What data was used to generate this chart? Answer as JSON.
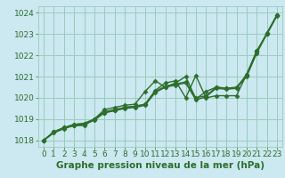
{
  "xlabel": "Graphe pression niveau de la mer (hPa)",
  "background_color": "#cce8f0",
  "plot_bg_color": "#cce8f0",
  "grid_color": "#99ccbb",
  "line_color": "#2d6e2d",
  "text_color": "#2d6e2d",
  "ylim": [
    1017.7,
    1024.3
  ],
  "xlim": [
    -0.5,
    23.5
  ],
  "yticks": [
    1018,
    1019,
    1020,
    1021,
    1022,
    1023,
    1024
  ],
  "xticks": [
    0,
    1,
    2,
    3,
    4,
    5,
    6,
    7,
    8,
    9,
    10,
    11,
    12,
    13,
    14,
    15,
    16,
    17,
    18,
    19,
    20,
    21,
    22,
    23
  ],
  "series": [
    [
      1018.0,
      1018.4,
      1018.6,
      1018.7,
      1018.7,
      1019.0,
      1019.3,
      1019.4,
      1019.55,
      1019.6,
      1019.7,
      1020.35,
      1020.7,
      1020.8,
      1020.0,
      1021.05,
      1020.0,
      1020.1,
      1020.1,
      1020.1,
      1021.1,
      1022.2,
      1023.0,
      1023.9
    ],
    [
      1018.0,
      1018.4,
      1018.6,
      1018.75,
      1018.8,
      1019.0,
      1019.45,
      1019.55,
      1019.65,
      1019.7,
      1020.3,
      1020.8,
      1020.5,
      1020.7,
      1021.0,
      1019.95,
      1020.3,
      1020.5,
      1020.45,
      1020.45,
      1021.1,
      1022.2,
      1023.0,
      1023.9
    ],
    [
      1018.0,
      1018.4,
      1018.6,
      1018.75,
      1018.8,
      1019.0,
      1019.35,
      1019.45,
      1019.55,
      1019.6,
      1019.7,
      1020.3,
      1020.55,
      1020.65,
      1020.75,
      1020.0,
      1020.1,
      1020.5,
      1020.45,
      1020.5,
      1021.05,
      1022.15,
      1023.05,
      1023.9
    ],
    [
      1018.0,
      1018.35,
      1018.55,
      1018.7,
      1018.75,
      1018.95,
      1019.3,
      1019.4,
      1019.5,
      1019.55,
      1019.65,
      1020.25,
      1020.5,
      1020.6,
      1020.7,
      1019.9,
      1020.05,
      1020.45,
      1020.4,
      1020.45,
      1021.0,
      1022.1,
      1023.0,
      1023.85
    ]
  ],
  "marker": "D",
  "markersize": 2.5,
  "linewidth": 1.0,
  "fontsize_label": 7.5,
  "fontsize_ticks": 6.5
}
